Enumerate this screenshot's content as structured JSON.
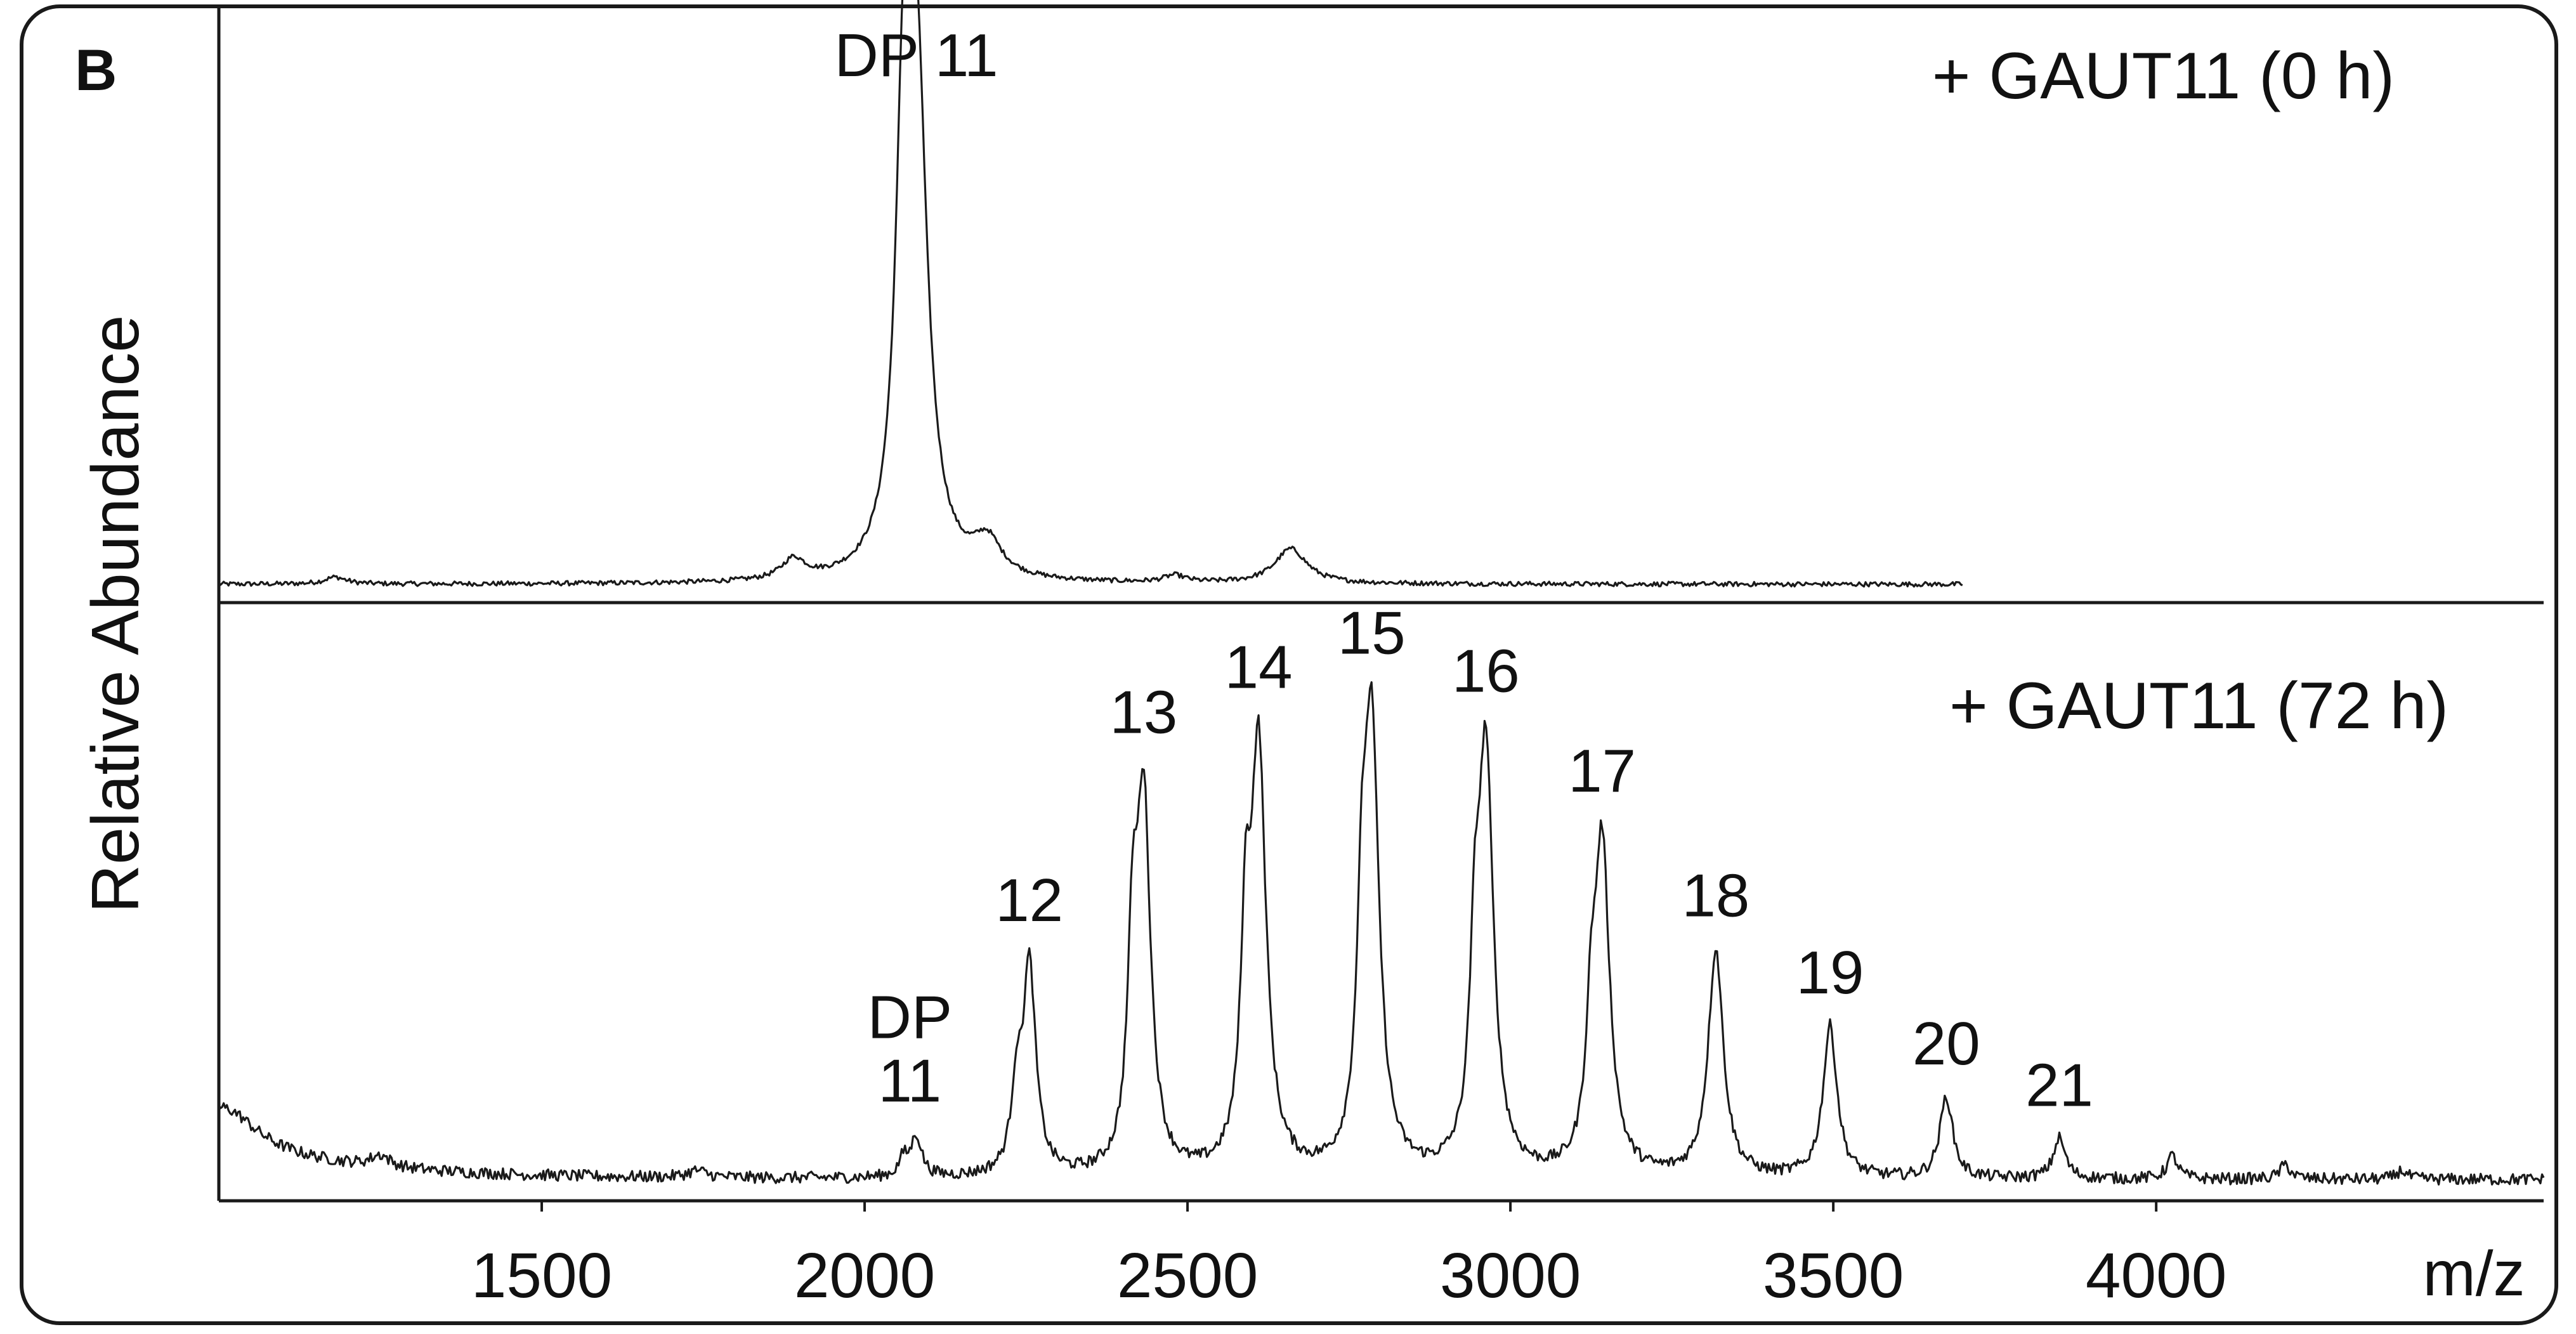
{
  "panel_label": "B",
  "chart_data": {
    "type": "line",
    "xlabel": "m/z",
    "ylabel": "Relative Abundance",
    "xlim": [
      1000,
      4600
    ],
    "x_ticks": [
      1500,
      2000,
      2500,
      3000,
      3500,
      4000
    ],
    "y_ticks_shown": false,
    "legend": "none",
    "grid": false,
    "panels": [
      {
        "name": "+ GAUT11 (0 h)",
        "x_range": [
          1000,
          3700
        ],
        "baseline": 0.015,
        "peaks": [
          {
            "x": 1180,
            "y": 0.012,
            "w": 20
          },
          {
            "x": 1890,
            "y": 0.035,
            "w": 22
          },
          {
            "x": 2060,
            "y": 0.62,
            "w": 14
          },
          {
            "x": 2080,
            "y": 0.86,
            "w": 20
          },
          {
            "x": 2190,
            "y": 0.06,
            "w": 26
          },
          {
            "x": 2480,
            "y": 0.012,
            "w": 20
          },
          {
            "x": 2660,
            "y": 0.06,
            "w": 30
          }
        ],
        "annotations": [
          {
            "text": "DP 11",
            "x": 2080
          }
        ]
      },
      {
        "name": "+ GAUT11 (72 h)",
        "x_range": [
          1000,
          4600
        ],
        "baseline": 0.02,
        "peaks": [
          {
            "x": 1010,
            "y": 0.07,
            "w": 60
          },
          {
            "x": 1250,
            "y": 0.02,
            "w": 18
          },
          {
            "x": 1740,
            "y": 0.012,
            "w": 18
          },
          {
            "x": 2060,
            "y": 0.03,
            "w": 8
          },
          {
            "x": 2080,
            "y": 0.07,
            "w": 10
          },
          {
            "x": 2235,
            "y": 0.13,
            "w": 9
          },
          {
            "x": 2255,
            "y": 0.36,
            "w": 12
          },
          {
            "x": 2415,
            "y": 0.33,
            "w": 9
          },
          {
            "x": 2432,
            "y": 0.63,
            "w": 13
          },
          {
            "x": 2590,
            "y": 0.34,
            "w": 9
          },
          {
            "x": 2610,
            "y": 0.72,
            "w": 14
          },
          {
            "x": 2770,
            "y": 0.31,
            "w": 9
          },
          {
            "x": 2785,
            "y": 0.75,
            "w": 14
          },
          {
            "x": 2945,
            "y": 0.28,
            "w": 9
          },
          {
            "x": 2962,
            "y": 0.71,
            "w": 14
          },
          {
            "x": 3125,
            "y": 0.19,
            "w": 9
          },
          {
            "x": 3142,
            "y": 0.56,
            "w": 14
          },
          {
            "x": 3318,
            "y": 0.39,
            "w": 14
          },
          {
            "x": 3495,
            "y": 0.26,
            "w": 13
          },
          {
            "x": 3675,
            "y": 0.14,
            "w": 12
          },
          {
            "x": 3850,
            "y": 0.07,
            "w": 11
          },
          {
            "x": 4025,
            "y": 0.04,
            "w": 10
          },
          {
            "x": 4200,
            "y": 0.025,
            "w": 10
          },
          {
            "x": 4380,
            "y": 0.015,
            "w": 10
          }
        ],
        "annotations": [
          {
            "text": "DP",
            "x": 2070,
            "line": 1
          },
          {
            "text": "11",
            "x": 2070,
            "line": 2
          },
          {
            "text": "12",
            "x": 2255
          },
          {
            "text": "13",
            "x": 2432
          },
          {
            "text": "14",
            "x": 2610
          },
          {
            "text": "15",
            "x": 2785
          },
          {
            "text": "16",
            "x": 2962
          },
          {
            "text": "17",
            "x": 3142
          },
          {
            "text": "18",
            "x": 3318
          },
          {
            "text": "19",
            "x": 3495
          },
          {
            "text": "20",
            "x": 3675
          },
          {
            "text": "21",
            "x": 3850
          }
        ]
      }
    ]
  }
}
